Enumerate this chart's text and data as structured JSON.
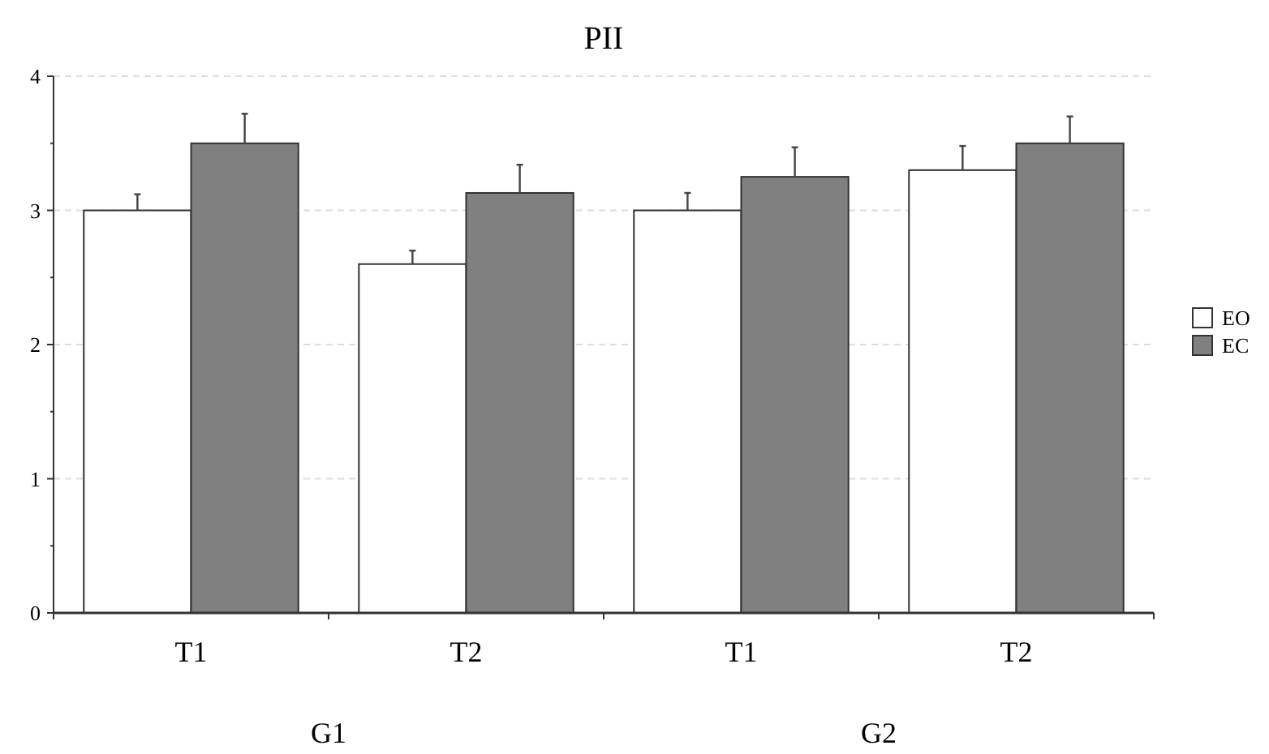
{
  "chart_data": {
    "type": "bar",
    "title": "PII",
    "categories": [
      "T1",
      "T2",
      "T1",
      "T2"
    ],
    "series": [
      {
        "name": "EO",
        "color": "#ffffff",
        "values": [
          3.0,
          2.6,
          3.0,
          3.3
        ],
        "errors": [
          0.12,
          0.1,
          0.13,
          0.18
        ]
      },
      {
        "name": "EC",
        "color": "#808080",
        "values": [
          3.5,
          3.13,
          3.25,
          3.5
        ],
        "errors": [
          0.22,
          0.21,
          0.22,
          0.2
        ]
      }
    ],
    "ylim": [
      0,
      4
    ],
    "yticks": [
      0,
      {
        "value": 0.5,
        "label": null
      },
      1,
      {
        "value": 1.5,
        "label": null
      },
      2,
      {
        "value": 2.5,
        "label": null
      },
      3,
      {
        "value": 3.5,
        "label": null
      },
      4
    ],
    "grid": "y",
    "legend": "right",
    "annotations": [
      "G1",
      "G2"
    ]
  }
}
